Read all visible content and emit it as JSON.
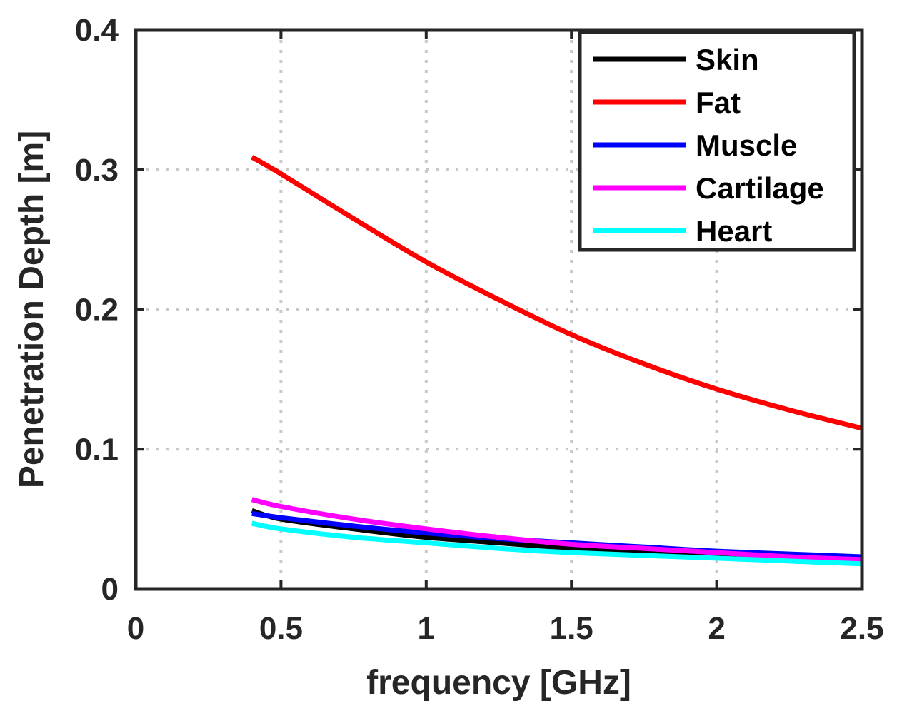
{
  "chart_data": {
    "type": "line",
    "title": "",
    "xlabel": "frequency [GHz]",
    "ylabel": "Penetration Depth [m]",
    "xlim": [
      0,
      2.5
    ],
    "ylim": [
      0,
      0.4
    ],
    "xticks": [
      0,
      0.5,
      1,
      1.5,
      2,
      2.5
    ],
    "xtick_labels": [
      "0",
      "0.5",
      "1",
      "1.5",
      "2",
      "2.5"
    ],
    "yticks": [
      0,
      0.1,
      0.2,
      0.3,
      0.4
    ],
    "ytick_labels": [
      "0",
      "0.1",
      "0.2",
      "0.3",
      "0.4"
    ],
    "grid": true,
    "legend_position": "top-right",
    "x": [
      0.4,
      0.5,
      0.75,
      1.0,
      1.25,
      1.5,
      1.75,
      2.0,
      2.25,
      2.5
    ],
    "series": [
      {
        "name": "Skin",
        "color": "#000000",
        "values": [
          0.056,
          0.05,
          0.043,
          0.037,
          0.033,
          0.029,
          0.026,
          0.023,
          0.021,
          0.019
        ]
      },
      {
        "name": "Fat",
        "color": "#ff0000",
        "values": [
          0.309,
          0.297,
          0.265,
          0.234,
          0.207,
          0.182,
          0.161,
          0.143,
          0.128,
          0.115
        ]
      },
      {
        "name": "Muscle",
        "color": "#0000ff",
        "values": [
          0.054,
          0.051,
          0.045,
          0.04,
          0.036,
          0.033,
          0.03,
          0.027,
          0.025,
          0.023
        ]
      },
      {
        "name": "Cartilage",
        "color": "#ff00ff",
        "values": [
          0.064,
          0.059,
          0.05,
          0.043,
          0.037,
          0.032,
          0.029,
          0.026,
          0.023,
          0.021
        ]
      },
      {
        "name": "Heart",
        "color": "#00ffff",
        "values": [
          0.047,
          0.043,
          0.037,
          0.033,
          0.029,
          0.026,
          0.024,
          0.022,
          0.02,
          0.018
        ]
      }
    ]
  }
}
